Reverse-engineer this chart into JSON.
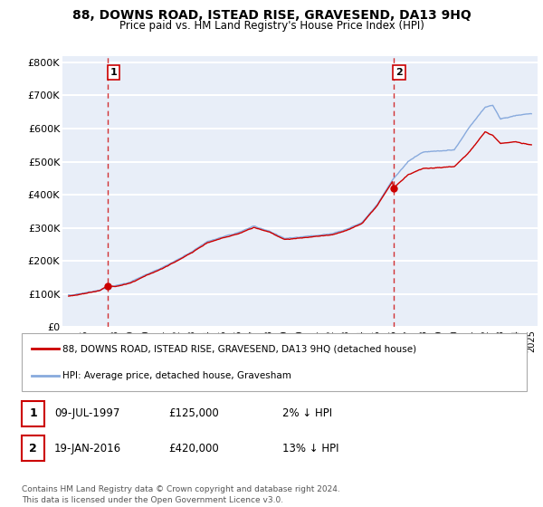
{
  "title": "88, DOWNS ROAD, ISTEAD RISE, GRAVESEND, DA13 9HQ",
  "subtitle": "Price paid vs. HM Land Registry's House Price Index (HPI)",
  "ylim": [
    0,
    820000
  ],
  "yticks": [
    0,
    100000,
    200000,
    300000,
    400000,
    500000,
    600000,
    700000,
    800000
  ],
  "ytick_labels": [
    "£0",
    "£100K",
    "£200K",
    "£300K",
    "£400K",
    "£500K",
    "£600K",
    "£700K",
    "£800K"
  ],
  "bg_color": "#e8eef8",
  "grid_color": "#ffffff",
  "sale1_date": 1997.55,
  "sale1_price": 125000,
  "sale2_date": 2016.05,
  "sale2_price": 420000,
  "legend_property": "88, DOWNS ROAD, ISTEAD RISE, GRAVESEND, DA13 9HQ (detached house)",
  "legend_hpi": "HPI: Average price, detached house, Gravesham",
  "annotation1_date": "09-JUL-1997",
  "annotation1_price": "£125,000",
  "annotation1_hpi": "2% ↓ HPI",
  "annotation2_date": "19-JAN-2016",
  "annotation2_price": "£420,000",
  "annotation2_hpi": "13% ↓ HPI",
  "footnote": "Contains HM Land Registry data © Crown copyright and database right 2024.\nThis data is licensed under the Open Government Licence v3.0.",
  "property_line_color": "#cc0000",
  "hpi_line_color": "#88aadd",
  "marker_color": "#cc0000",
  "vline_color": "#cc0000",
  "hpi_keypoints_t": [
    1995,
    1996,
    1997,
    1998,
    1999,
    2000,
    2001,
    2002,
    2003,
    2004,
    2005,
    2006,
    2007,
    2008,
    2009,
    2010,
    2011,
    2012,
    2013,
    2014,
    2015,
    2016,
    2017,
    2018,
    2019,
    2020,
    2021,
    2022,
    2022.5,
    2023,
    2024,
    2025
  ],
  "hpi_keypoints_v": [
    95000,
    103000,
    112000,
    124000,
    136000,
    158000,
    178000,
    202000,
    228000,
    258000,
    272000,
    285000,
    305000,
    290000,
    268000,
    272000,
    277000,
    281000,
    295000,
    315000,
    370000,
    445000,
    500000,
    530000,
    532000,
    535000,
    605000,
    665000,
    670000,
    628000,
    640000,
    645000
  ],
  "prop_keypoints_t": [
    1995,
    1996,
    1997,
    1997.55,
    1998,
    1999,
    2000,
    2001,
    2002,
    2003,
    2004,
    2005,
    2006,
    2007,
    2008,
    2009,
    2010,
    2011,
    2012,
    2013,
    2014,
    2015,
    2016,
    2016.05,
    2017,
    2018,
    2019,
    2020,
    2021,
    2022,
    2022.5,
    2023,
    2024,
    2025
  ],
  "prop_keypoints_v": [
    93000,
    101000,
    110000,
    125000,
    122000,
    133000,
    155000,
    175000,
    199000,
    225000,
    255000,
    269000,
    282000,
    301000,
    287000,
    265000,
    269000,
    274000,
    278000,
    292000,
    312000,
    367000,
    440000,
    420000,
    460000,
    480000,
    482000,
    485000,
    530000,
    590000,
    580000,
    555000,
    560000,
    550000
  ]
}
